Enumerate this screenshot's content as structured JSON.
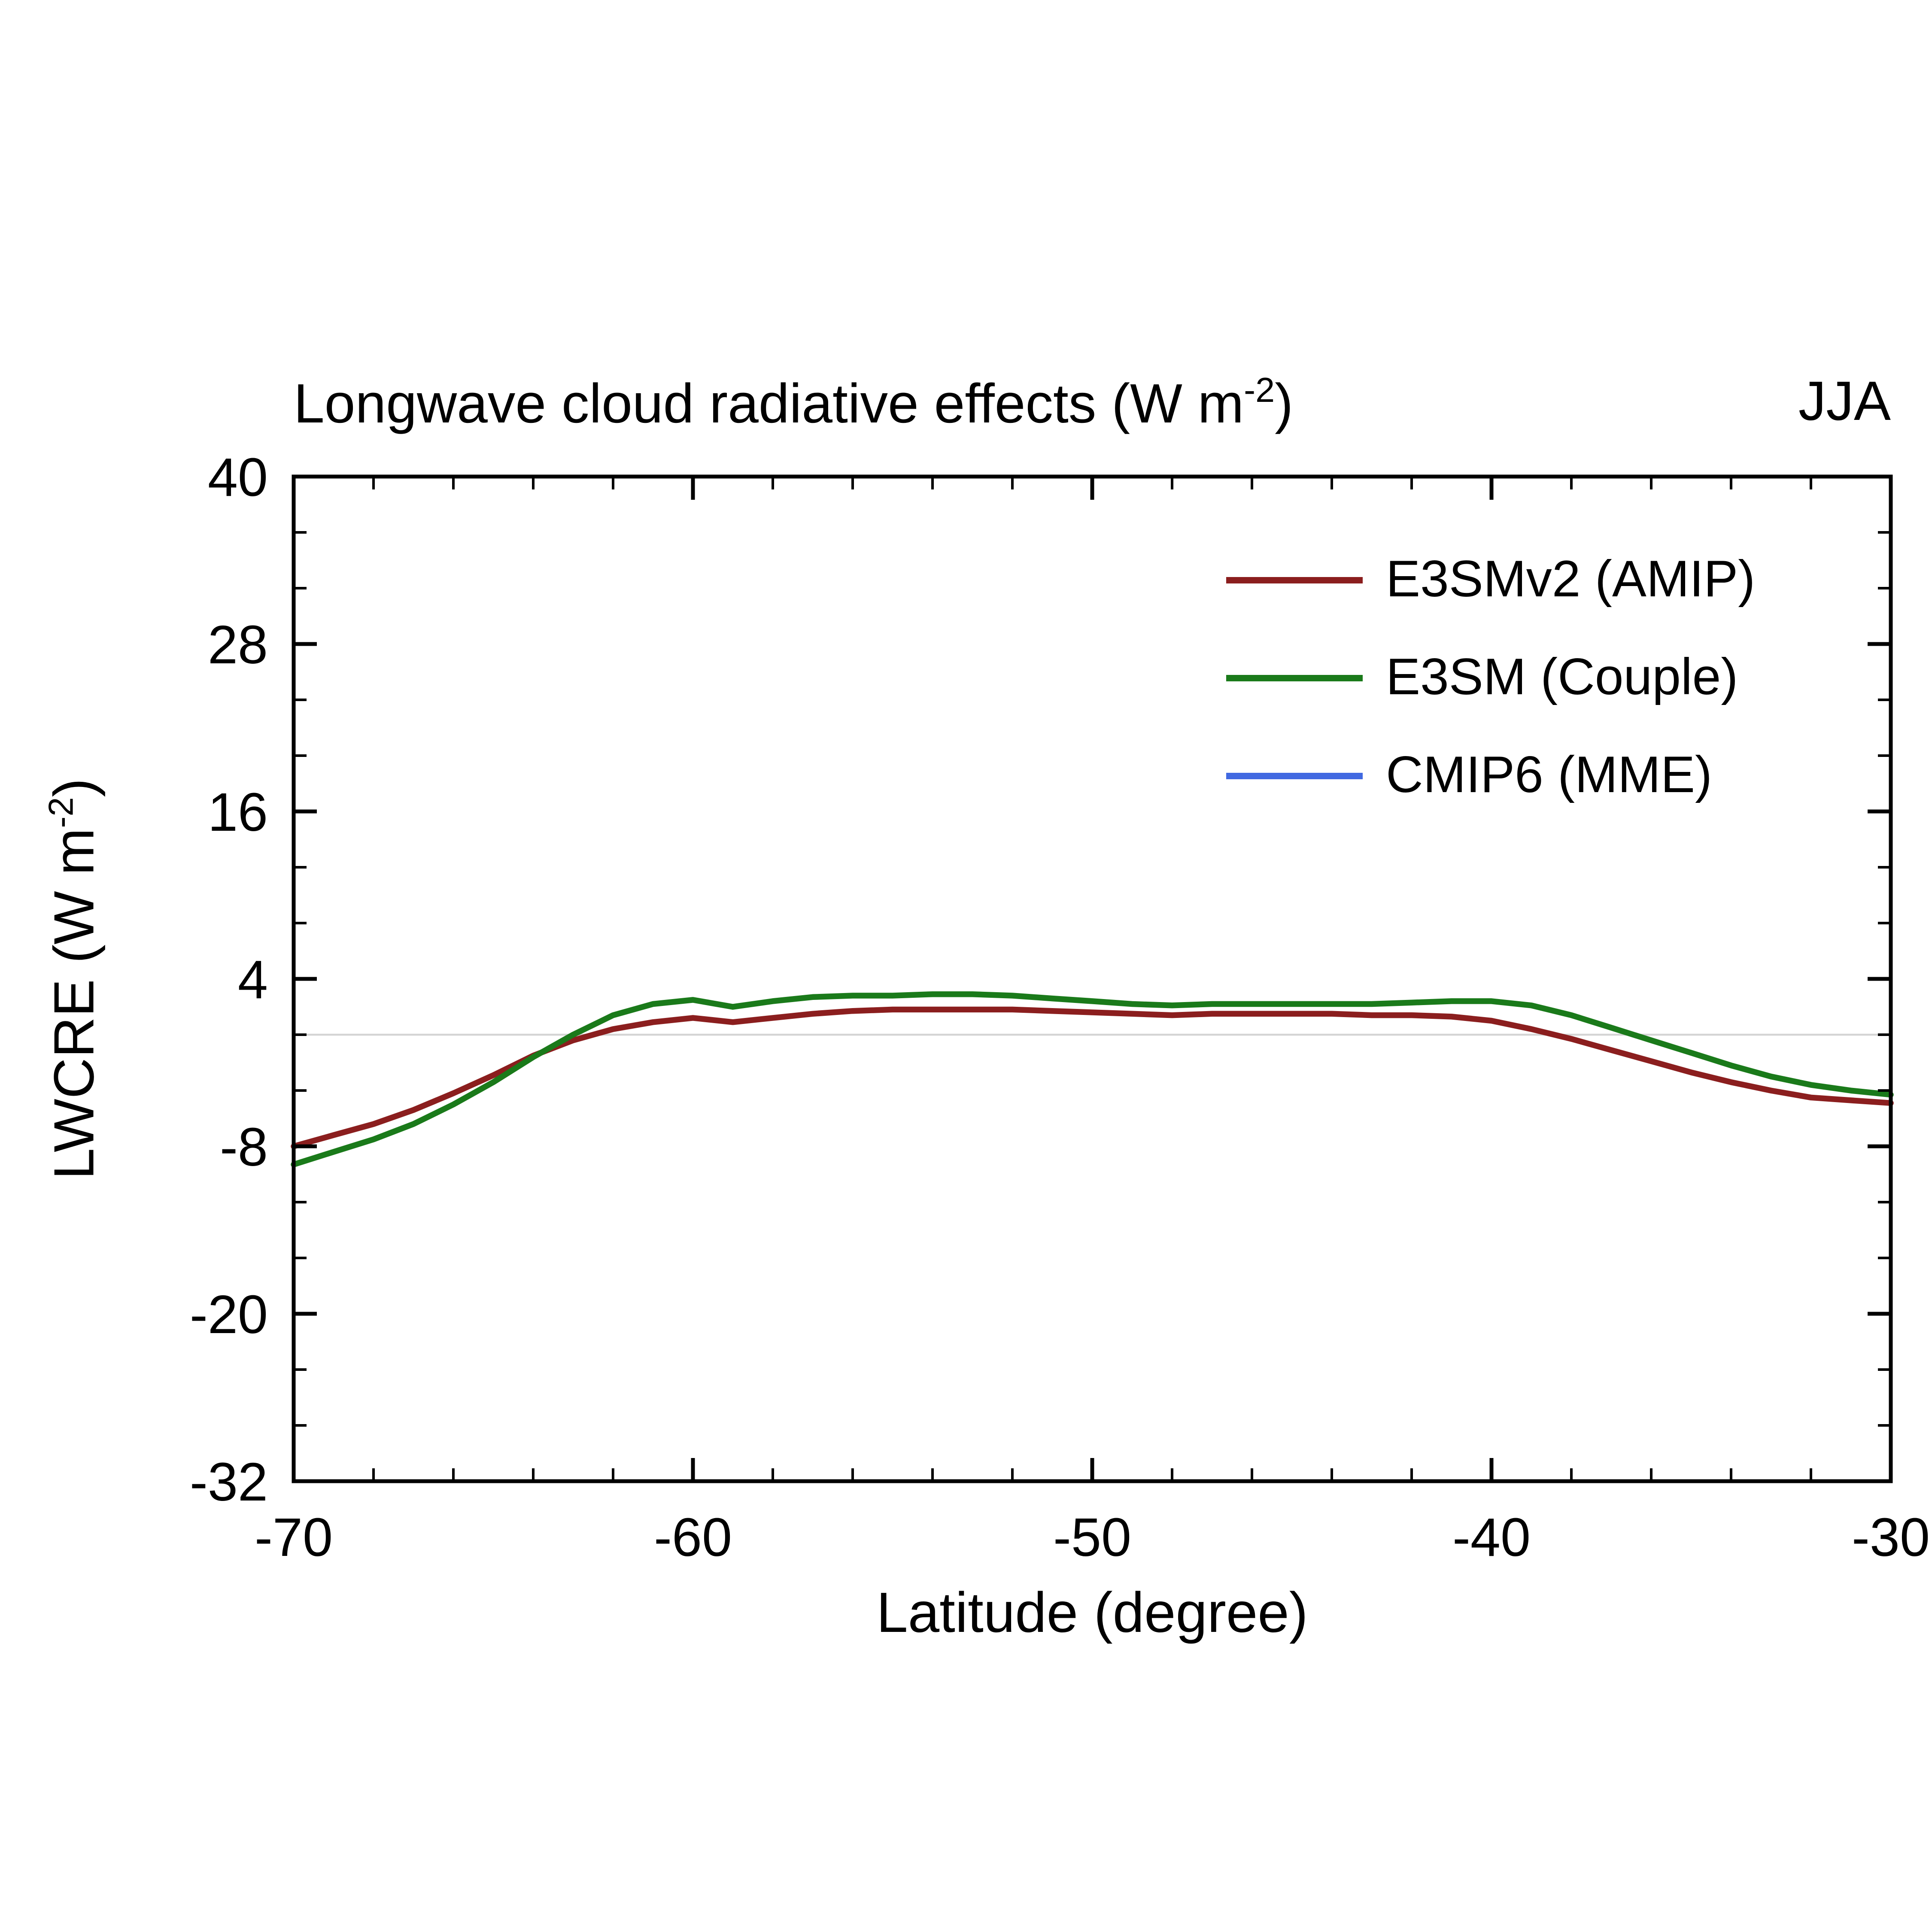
{
  "header": {
    "title_prefix": "Longwave cloud radiative effects (W m",
    "title_sup": "-2",
    "title_suffix": ")",
    "season": "JJA"
  },
  "axes": {
    "ylabel_prefix": "LWCRE (W m",
    "ylabel_sup": "-2",
    "ylabel_suffix": ")",
    "xlabel": "Latitude (degree)"
  },
  "legend": {
    "items": [
      {
        "label": "E3SMv2 (AMIP)",
        "color": "#8B1E1E"
      },
      {
        "label": "E3SM (Couple)",
        "color": "#1A7A1A"
      },
      {
        "label": "CMIP6 (MME)",
        "color": "#4169E1"
      }
    ]
  },
  "chart_data": {
    "type": "line",
    "title": "Longwave cloud radiative effects (W m-2)",
    "subtitle_right": "JJA",
    "xlabel": "Latitude (degree)",
    "ylabel": "LWCRE (W m-2)",
    "xlim": [
      -70,
      -30
    ],
    "ylim": [
      -32,
      40
    ],
    "xticks_major": [
      -70,
      -60,
      -50,
      -40,
      -30
    ],
    "xtick_minor_step": 2,
    "yticks_major": [
      -32,
      -20,
      -8,
      4,
      16,
      28,
      40
    ],
    "ytick_minor_step": 4,
    "reference_line_y": 0,
    "grid": false,
    "legend_position": "upper right inside",
    "x": [
      -70,
      -69,
      -68,
      -67,
      -66,
      -65,
      -64,
      -63,
      -62,
      -61,
      -60,
      -59,
      -58,
      -57,
      -56,
      -55,
      -54,
      -53,
      -52,
      -51,
      -50,
      -49,
      -48,
      -47,
      -46,
      -45,
      -44,
      -43,
      -42,
      -41,
      -40,
      -39,
      -38,
      -37,
      -36,
      -35,
      -34,
      -33,
      -32,
      -31,
      -30
    ],
    "series": [
      {
        "name": "E3SMv2 (AMIP)",
        "color": "#8B1E1E",
        "values": [
          -8.0,
          -7.2,
          -6.4,
          -5.4,
          -4.2,
          -2.9,
          -1.5,
          -0.4,
          0.4,
          0.9,
          1.2,
          0.9,
          1.2,
          1.5,
          1.7,
          1.8,
          1.8,
          1.8,
          1.8,
          1.7,
          1.6,
          1.5,
          1.4,
          1.5,
          1.5,
          1.5,
          1.5,
          1.4,
          1.4,
          1.3,
          1.0,
          0.4,
          -0.3,
          -1.1,
          -1.9,
          -2.7,
          -3.4,
          -4.0,
          -4.5,
          -4.7,
          -4.9
        ]
      },
      {
        "name": "E3SM (Couple)",
        "color": "#1A7A1A",
        "values": [
          -9.3,
          -8.4,
          -7.5,
          -6.4,
          -5.0,
          -3.4,
          -1.6,
          0.0,
          1.4,
          2.2,
          2.5,
          2.0,
          2.4,
          2.7,
          2.8,
          2.8,
          2.9,
          2.9,
          2.8,
          2.6,
          2.4,
          2.2,
          2.1,
          2.2,
          2.2,
          2.2,
          2.2,
          2.2,
          2.3,
          2.4,
          2.4,
          2.1,
          1.4,
          0.5,
          -0.4,
          -1.3,
          -2.2,
          -3.0,
          -3.6,
          -4.0,
          -4.3
        ]
      },
      {
        "name": "CMIP6 (MME)",
        "color": "#4169E1",
        "values": [],
        "note": "legend entry only; line not visible in plot area"
      }
    ]
  }
}
